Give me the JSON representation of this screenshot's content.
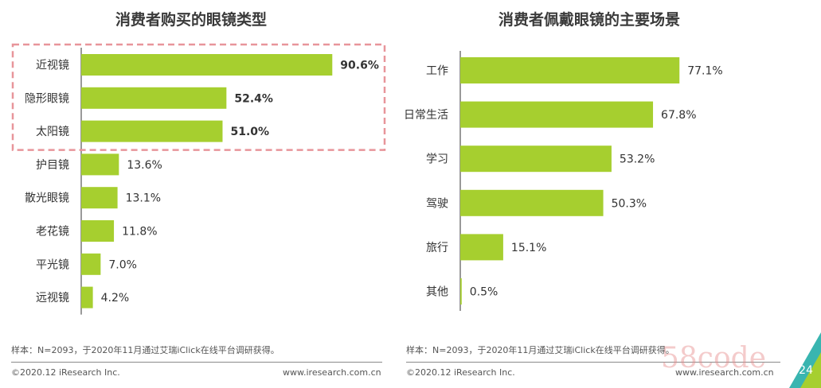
{
  "colors": {
    "bar": "#a6cf2f",
    "highlight_border": "#e8959a",
    "axis": "#333333",
    "corner_teal": "#39b5b0"
  },
  "chart_data": [
    {
      "type": "bar",
      "orientation": "horizontal",
      "title": "消费者购买的眼镜类型",
      "categories": [
        "近视镜",
        "隐形眼镜",
        "太阳镜",
        "护目镜",
        "散光眼镜",
        "老花镜",
        "平光镜",
        "远视镜"
      ],
      "values": [
        90.6,
        52.4,
        51.0,
        13.6,
        13.1,
        11.8,
        7.0,
        4.2
      ],
      "value_labels": [
        "90.6%",
        "52.4%",
        "51.0%",
        "13.6%",
        "13.1%",
        "11.8%",
        "7.0%",
        "4.2%"
      ],
      "highlighted": [
        0,
        1,
        2
      ],
      "xlim": [
        0,
        100
      ]
    },
    {
      "type": "bar",
      "orientation": "horizontal",
      "title": "消费者佩戴眼镜的主要场景",
      "categories": [
        "工作",
        "日常生活",
        "学习",
        "驾驶",
        "旅行",
        "其他"
      ],
      "values": [
        77.1,
        67.8,
        53.2,
        50.3,
        15.1,
        0.5
      ],
      "value_labels": [
        "77.1%",
        "67.8%",
        "53.2%",
        "50.3%",
        "15.1%",
        "0.5%"
      ],
      "xlim": [
        0,
        100
      ]
    }
  ],
  "notes": {
    "left": "样本：N=2093，于2020年11月通过艾瑞iClick在线平台调研获得。",
    "right": "样本：N=2093，于2020年11月通过艾瑞iClick在线平台调研获得。"
  },
  "footer": {
    "copyright_left": "©2020.12 iResearch Inc.",
    "url_left": "www.iresearch.com.cn",
    "copyright_right": "©2020.12 iResearch Inc.",
    "url_right": "www.iresearch.com.cn"
  },
  "watermark": "58code",
  "page_number": "24"
}
